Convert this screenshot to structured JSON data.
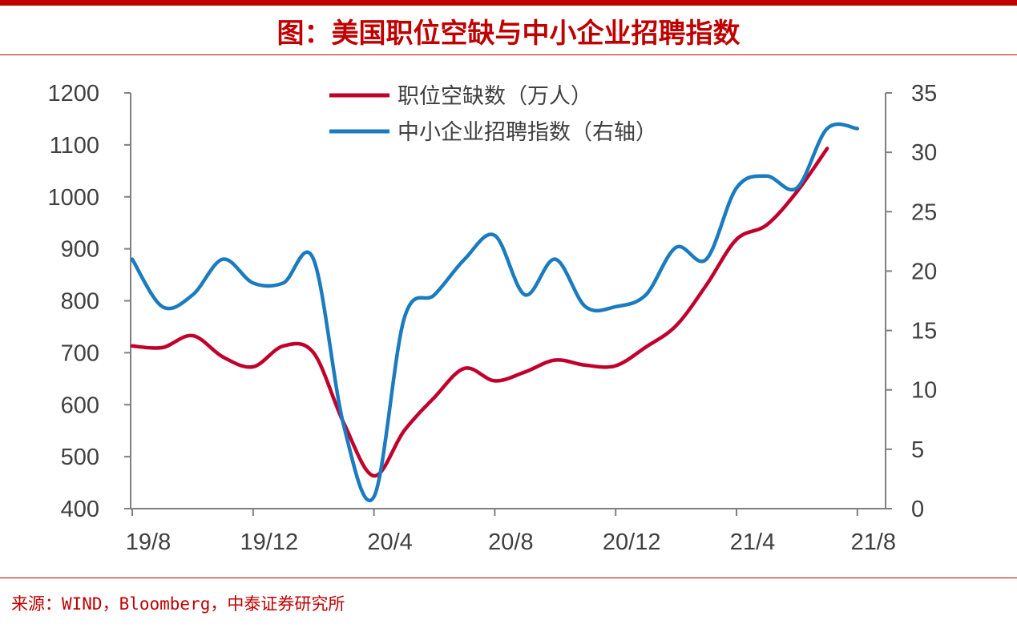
{
  "title": "图：美国职位空缺与中小企业招聘指数",
  "source": "来源：WIND，Bloomberg，中泰证券研究所",
  "colors": {
    "accent": "#c00000",
    "series_red": "#c0002b",
    "series_blue": "#1b7bbf",
    "axis": "#7f7f7f"
  },
  "chart_data": {
    "type": "line",
    "x": [
      "19/8",
      "19/9",
      "19/10",
      "19/11",
      "19/12",
      "20/1",
      "20/2",
      "20/3",
      "20/4",
      "20/5",
      "20/6",
      "20/7",
      "20/8",
      "20/9",
      "20/10",
      "20/11",
      "20/12",
      "21/1",
      "21/2",
      "21/3",
      "21/4",
      "21/5",
      "21/6",
      "21/7",
      "21/8"
    ],
    "x_tick_labels": [
      "19/8",
      "19/12",
      "20/4",
      "20/8",
      "20/12",
      "21/4",
      "21/8"
    ],
    "y_left": {
      "min": 400,
      "max": 1200,
      "ticks": [
        400,
        500,
        600,
        700,
        800,
        900,
        1000,
        1100,
        1200
      ]
    },
    "y_right": {
      "min": 0,
      "max": 35,
      "ticks": [
        0,
        5,
        10,
        15,
        20,
        25,
        30,
        35
      ]
    },
    "legend_position": "top",
    "series": [
      {
        "name": "职位空缺数（万人）",
        "axis": "left",
        "color": "#c0002b",
        "values": [
          713,
          710,
          733,
          692,
          673,
          713,
          700,
          565,
          463,
          550,
          614,
          670,
          646,
          663,
          686,
          676,
          675,
          711,
          752,
          830,
          918,
          946,
          1010,
          1093,
          null
        ]
      },
      {
        "name": "中小企业招聘指数（右轴）",
        "axis": "right",
        "color": "#1b7bbf",
        "values": [
          21,
          17,
          18,
          21,
          19,
          19,
          21,
          7,
          1,
          16,
          18,
          21,
          23,
          18,
          21,
          17,
          17,
          18,
          22,
          21,
          27,
          28,
          27,
          32,
          32
        ]
      }
    ]
  }
}
